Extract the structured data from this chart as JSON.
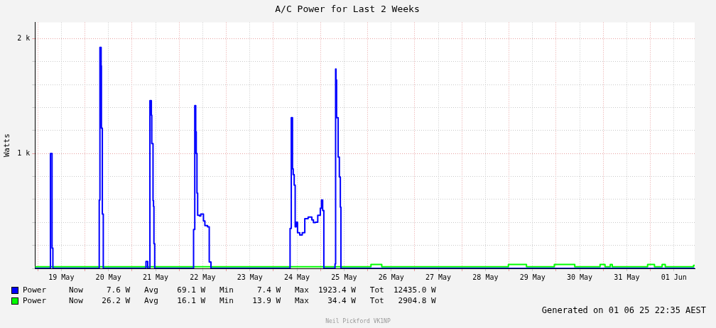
{
  "chart_data": {
    "type": "step",
    "title": "A/C Power for Last 2 Weeks",
    "ylabel": "Watts",
    "xlim": [
      "--05-18T22:35",
      "--06-01T22:35"
    ],
    "xticks": [
      {
        "value": "--05-19T00:00",
        "label": null
      },
      {
        "value": "--05-19T12:00",
        "label": "19 May"
      },
      {
        "value": "--05-20T00:00",
        "label": null
      },
      {
        "value": "--05-20T12:00",
        "label": "20 May"
      },
      {
        "value": "--05-21T00:00",
        "label": null
      },
      {
        "value": "--05-21T12:00",
        "label": "21 May"
      },
      {
        "value": "--05-22T00:00",
        "label": null
      },
      {
        "value": "--05-22T12:00",
        "label": "22 May"
      },
      {
        "value": "--05-23T00:00",
        "label": null
      },
      {
        "value": "--05-23T12:00",
        "label": "23 May"
      },
      {
        "value": "--05-24T00:00",
        "label": null
      },
      {
        "value": "--05-24T12:00",
        "label": "24 May"
      },
      {
        "value": "--05-25T00:00",
        "label": null
      },
      {
        "value": "--05-25T12:00",
        "label": "25 May"
      },
      {
        "value": "--05-26T00:00",
        "label": null
      },
      {
        "value": "--05-26T12:00",
        "label": "26 May"
      },
      {
        "value": "--05-27T00:00",
        "label": null
      },
      {
        "value": "--05-27T12:00",
        "label": "27 May"
      },
      {
        "value": "--05-28T00:00",
        "label": null
      },
      {
        "value": "--05-28T12:00",
        "label": "28 May"
      },
      {
        "value": "--05-29T00:00",
        "label": null
      },
      {
        "value": "--05-29T12:00",
        "label": "29 May"
      },
      {
        "value": "--05-30T00:00",
        "label": null
      },
      {
        "value": "--05-30T12:00",
        "label": "30 May"
      },
      {
        "value": "--05-31T00:00",
        "label": null
      },
      {
        "value": "--05-31T12:00",
        "label": "31 May"
      },
      {
        "value": "--06-01T00:00",
        "label": null
      },
      {
        "value": "--06-01T12:00",
        "label": "01 Jun"
      }
    ],
    "ylim": [
      0,
      2140
    ],
    "yticks": [
      {
        "value": 0,
        "label": null
      },
      {
        "value": 200,
        "label": null
      },
      {
        "value": 400,
        "label": null
      },
      {
        "value": 600,
        "label": null
      },
      {
        "value": 800,
        "label": null
      },
      {
        "value": 1000,
        "label": "1 k"
      },
      {
        "value": 1200,
        "label": null
      },
      {
        "value": 1400,
        "label": null
      },
      {
        "value": 1600,
        "label": null
      },
      {
        "value": 1800,
        "label": null
      },
      {
        "value": 2000,
        "label": "2 k"
      }
    ],
    "grid": true,
    "legend": "bottom",
    "series": [
      {
        "name": "Power",
        "color": "#0000ff",
        "x": [
          "--05-18T22:35",
          "--05-19T06:27",
          "--05-19T07:16",
          "--05-19T07:42",
          "--05-20T07:18",
          "--05-20T07:40",
          "--05-20T08:16",
          "--05-20T08:25",
          "--05-20T08:53",
          "--05-20T09:22",
          "--05-21T07:07",
          "--05-21T08:00",
          "--05-21T09:07",
          "--05-21T09:51",
          "--05-21T10:04",
          "--05-21T10:42",
          "--05-21T10:57",
          "--05-21T11:10",
          "--05-21T11:33",
          "--05-22T07:21",
          "--05-22T07:58",
          "--05-22T08:27",
          "--05-22T08:43",
          "--05-22T09:05",
          "--05-22T09:26",
          "--05-22T10:24",
          "--05-22T11:02",
          "--05-22T12:23",
          "--05-22T13:07",
          "--05-22T14:28",
          "--05-22T15:20",
          "--05-22T16:12",
          "--05-24T08:30",
          "--05-24T09:07",
          "--05-24T09:44",
          "--05-24T10:06",
          "--05-24T10:36",
          "--05-24T11:06",
          "--05-24T11:36",
          "--05-24T12:18",
          "--05-24T13:24",
          "--05-24T14:42",
          "--05-24T16:00",
          "--05-24T17:42",
          "--05-24T19:36",
          "--05-24T20:24",
          "--05-24T21:24",
          "--05-24T22:36",
          "--05-24T23:54",
          "--05-25T00:30",
          "--05-25T01:06",
          "--05-25T01:42",
          "--05-25T07:24",
          "--05-25T07:42",
          "--05-25T07:54",
          "--05-25T08:12",
          "--05-25T09:00",
          "--05-25T09:36",
          "--05-25T10:06",
          "--05-25T10:24",
          "--06-01T22:35"
        ],
        "values": [
          0,
          1000,
          176,
          0,
          594,
          1923,
          1762,
          1220,
          473,
          0,
          60,
          0,
          1459,
          1333,
          1085,
          590,
          539,
          214,
          0,
          339,
          1416,
          1190,
          1000,
          655,
          462,
          455,
          473,
          412,
          372,
          362,
          55,
          0,
          347,
          1311,
          867,
          816,
          725,
          362,
          402,
          311,
          291,
          311,
          432,
          446,
          422,
          398,
          402,
          462,
          523,
          594,
          503,
          0,
          38,
          1735,
          1640,
          1311,
          968,
          796,
          533,
          0,
          0
        ]
      },
      {
        "name": "Power",
        "color": "#00ff00",
        "x": [
          "--05-18T22:35",
          "--05-26T01:42",
          "--05-26T07:12",
          "--05-28T23:42",
          "--05-29T08:54",
          "--05-29T23:06",
          "--05-30T09:30",
          "--05-30T22:24",
          "--05-31T00:54",
          "--05-31T03:36",
          "--05-31T04:36",
          "--05-31T22:36",
          "--06-01T02:06",
          "--06-01T06:00",
          "--06-01T07:36",
          "--06-01T22:00",
          "--06-01T22:35"
        ],
        "values": [
          14,
          34,
          14,
          34,
          14,
          34,
          14,
          34,
          14,
          34,
          14,
          34,
          14,
          34,
          14,
          26,
          26
        ]
      }
    ],
    "annotations": [
      "Now     7.6 W   Avg    69.1 W   Min     7.4 W   Max  1923.4 W   Tot  12435.0 W",
      "Now    26.2 W   Avg    16.1 W   Min    13.9 W   Max    34.4 W   Tot   2904.8 W",
      "Generated on 01 06 25 22:35 AEST",
      "Neil Pickford VK1NP"
    ]
  }
}
